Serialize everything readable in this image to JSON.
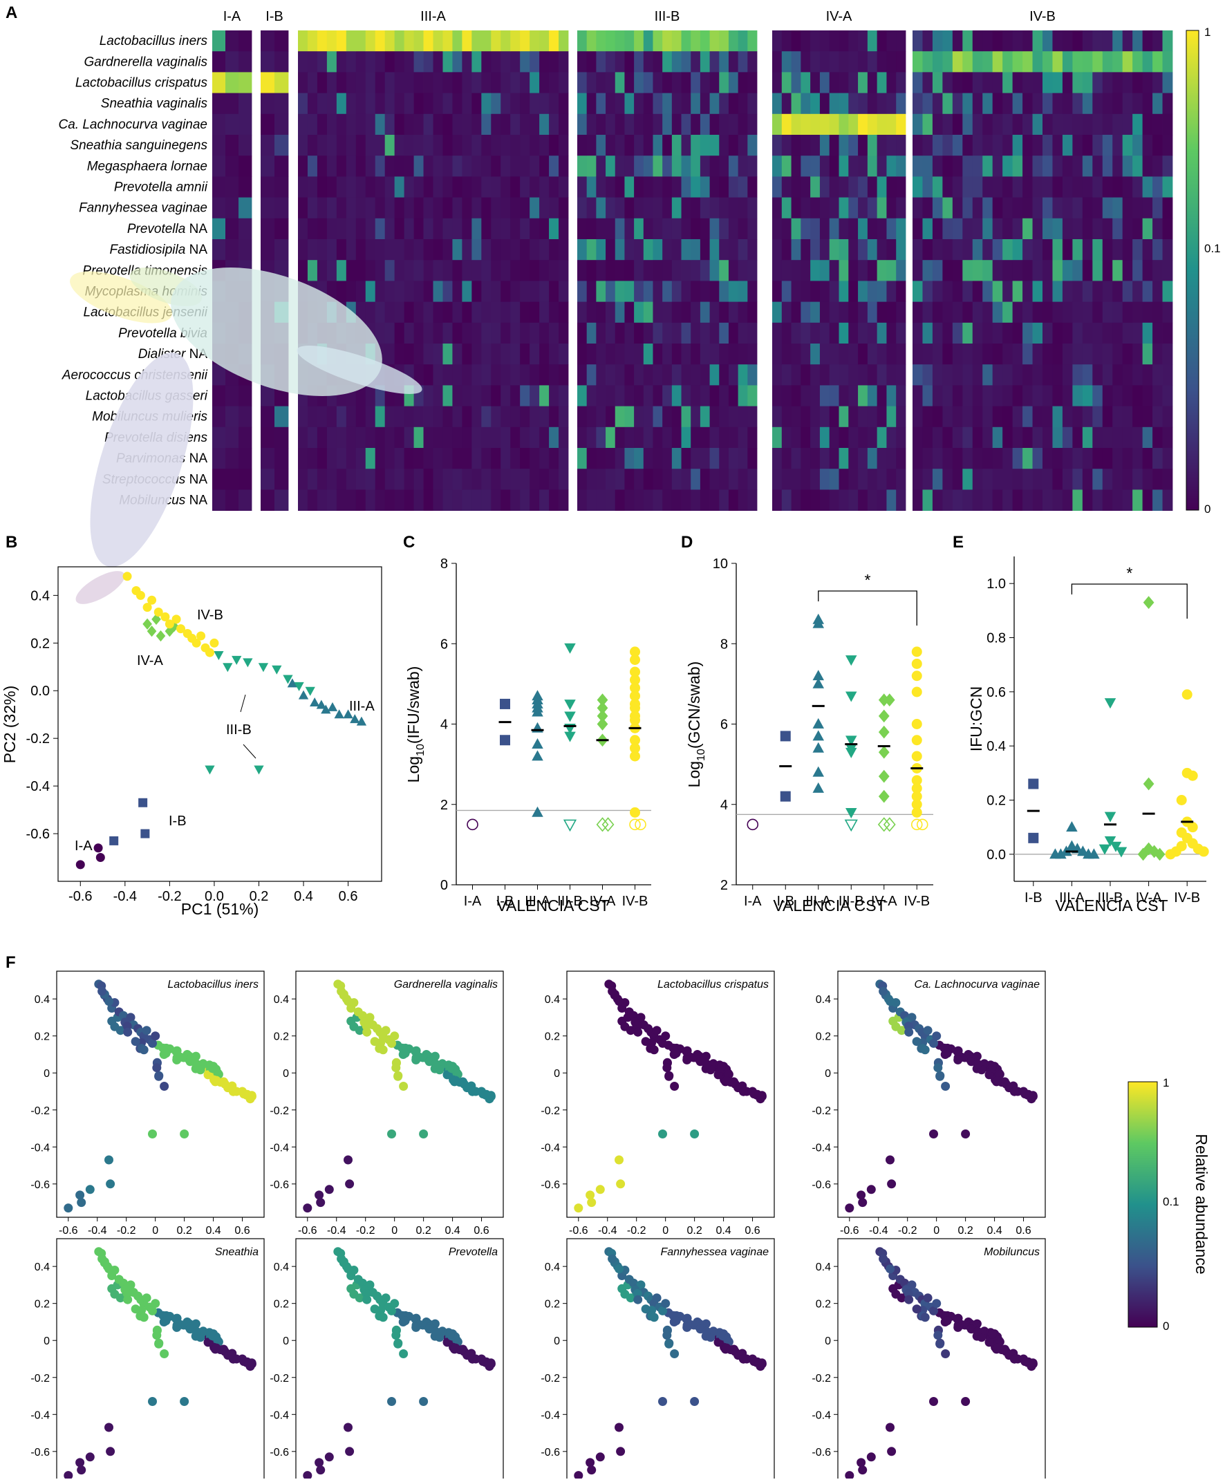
{
  "panel_letters": {
    "a": "A",
    "b": "B",
    "c": "C",
    "d": "D",
    "e": "E",
    "f": "F"
  },
  "colors": {
    "viridis": [
      "#440154",
      "#3b528b",
      "#21918c",
      "#5ec962",
      "#fde725"
    ],
    "cst": {
      "I-A": "#440154",
      "I-B": "#3b528b",
      "III-A": "#2a788e",
      "III-B": "#22a884",
      "IV-A": "#7ad151",
      "IV-B": "#fde725"
    },
    "hline": "#aaaaaa"
  },
  "chart_data": [
    {
      "id": "A",
      "type": "heatmap",
      "title": "",
      "groups": [
        {
          "label": "I-A",
          "columns": 3
        },
        {
          "label": "I-B",
          "columns": 2
        },
        {
          "label": "III-A",
          "columns": 28
        },
        {
          "label": "III-B",
          "columns": 19
        },
        {
          "label": "IV-A",
          "columns": 14
        },
        {
          "label": "IV-B",
          "columns": 26
        }
      ],
      "rows": [
        {
          "italic": "Lactobacillus iners",
          "suffix": ""
        },
        {
          "italic": "Gardnerella vaginalis",
          "suffix": ""
        },
        {
          "italic": "Lactobacillus crispatus",
          "suffix": ""
        },
        {
          "italic": "Sneathia vaginalis",
          "suffix": ""
        },
        {
          "italic": "Ca. Lachnocurva vaginae",
          "suffix": ""
        },
        {
          "italic": "Sneathia sanguinegens",
          "suffix": ""
        },
        {
          "italic": "Megasphaera lornae",
          "suffix": ""
        },
        {
          "italic": "Prevotella amnii",
          "suffix": ""
        },
        {
          "italic": "Fannyhessea vaginae",
          "suffix": ""
        },
        {
          "italic": "Prevotella",
          "suffix": " NA"
        },
        {
          "italic": "Fastidiosipila",
          "suffix": " NA"
        },
        {
          "italic": "Prevotella timonensis",
          "suffix": ""
        },
        {
          "italic": "Mycoplasma hominis",
          "suffix": ""
        },
        {
          "italic": "Lactobacillus jensenii",
          "suffix": ""
        },
        {
          "italic": "Prevotella bivia",
          "suffix": ""
        },
        {
          "italic": "Dialister",
          "suffix": " NA"
        },
        {
          "italic": "Aerococcus christensenii",
          "suffix": ""
        },
        {
          "italic": "Lactobacillus gasseri",
          "suffix": ""
        },
        {
          "italic": "Mobiluncus mulieris",
          "suffix": ""
        },
        {
          "italic": "Prevotella disiens",
          "suffix": ""
        },
        {
          "italic": "Parvimonas",
          "suffix": " NA"
        },
        {
          "italic": "Streptococcus",
          "suffix": " NA"
        },
        {
          "italic": "Mobiluncus",
          "suffix": " NA"
        }
      ],
      "dominant_rows": {
        "I-A": 2,
        "I-B": 2,
        "III-A": 0,
        "III-B": 0,
        "IV-A": 4,
        "IV-B": 1
      },
      "colorbar": {
        "ticks": [
          "1",
          "0.1",
          "0"
        ]
      }
    },
    {
      "id": "B",
      "type": "scatter",
      "xlabel": "PC1 (51%)",
      "ylabel": "PC2 (32%)",
      "xlim": [
        -0.7,
        0.75
      ],
      "ylim": [
        -0.8,
        0.52
      ],
      "xticks": [
        "-0.6",
        "-0.4",
        "-0.2",
        "0.0",
        "0.2",
        "0.4",
        "0.6"
      ],
      "yticks": [
        "0.4",
        "0.2",
        "0.0",
        "-0.2",
        "-0.4",
        "-0.6"
      ],
      "group_labels": [
        "I-A",
        "I-B",
        "III-A",
        "III-B",
        "IV-A",
        "IV-B"
      ],
      "series": [
        {
          "name": "I-A",
          "marker": "circle",
          "points": [
            [
              -0.6,
              -0.73
            ],
            [
              -0.52,
              -0.66
            ],
            [
              -0.51,
              -0.7
            ]
          ]
        },
        {
          "name": "I-B",
          "marker": "square",
          "points": [
            [
              -0.45,
              -0.63
            ],
            [
              -0.32,
              -0.47
            ],
            [
              -0.31,
              -0.6
            ]
          ]
        },
        {
          "name": "III-A",
          "marker": "triangle",
          "points": [
            [
              0.35,
              0.03
            ],
            [
              0.4,
              -0.02
            ],
            [
              0.45,
              -0.05
            ],
            [
              0.48,
              -0.06
            ],
            [
              0.5,
              -0.08
            ],
            [
              0.53,
              -0.07
            ],
            [
              0.56,
              -0.1
            ],
            [
              0.6,
              -0.1
            ],
            [
              0.63,
              -0.12
            ],
            [
              0.66,
              -0.13
            ]
          ]
        },
        {
          "name": "III-B",
          "marker": "triangle-down",
          "points": [
            [
              0.02,
              0.15
            ],
            [
              0.06,
              0.1
            ],
            [
              0.1,
              0.13
            ],
            [
              0.15,
              0.12
            ],
            [
              0.22,
              0.1
            ],
            [
              0.28,
              0.09
            ],
            [
              0.33,
              0.05
            ],
            [
              0.38,
              0.02
            ],
            [
              0.43,
              0.0
            ],
            [
              -0.02,
              -0.33
            ],
            [
              0.2,
              -0.33
            ]
          ]
        },
        {
          "name": "IV-A",
          "marker": "diamond",
          "points": [
            [
              -0.3,
              0.28
            ],
            [
              -0.28,
              0.25
            ],
            [
              -0.26,
              0.3
            ],
            [
              -0.24,
              0.23
            ],
            [
              -0.2,
              0.25
            ],
            [
              -0.18,
              0.27
            ]
          ]
        },
        {
          "name": "IV-B",
          "marker": "circle",
          "points": [
            [
              -0.39,
              0.48
            ],
            [
              -0.35,
              0.42
            ],
            [
              -0.33,
              0.4
            ],
            [
              -0.3,
              0.35
            ],
            [
              -0.28,
              0.38
            ],
            [
              -0.25,
              0.33
            ],
            [
              -0.22,
              0.31
            ],
            [
              -0.2,
              0.28
            ],
            [
              -0.17,
              0.3
            ],
            [
              -0.15,
              0.26
            ],
            [
              -0.12,
              0.24
            ],
            [
              -0.1,
              0.22
            ],
            [
              -0.08,
              0.2
            ],
            [
              -0.06,
              0.23
            ],
            [
              -0.04,
              0.18
            ],
            [
              -0.02,
              0.16
            ],
            [
              0.0,
              0.2
            ]
          ]
        }
      ]
    },
    {
      "id": "C",
      "type": "scatter",
      "xlabel": "VALENCIA CST",
      "ylabel_main": "Log",
      "ylabel_sub": "10",
      "ylabel_rest": "(IFU/swab)",
      "categories": [
        "I-A",
        "I-B",
        "III-A",
        "III-B",
        "IV-A",
        "IV-B"
      ],
      "ylim": [
        0,
        8
      ],
      "yticks": [
        "0",
        "2",
        "4",
        "6",
        "8"
      ],
      "lod": 1.85,
      "series": [
        {
          "name": "I-A",
          "marker": "circle",
          "open": [
            1.5
          ],
          "filled": [],
          "mean": null
        },
        {
          "name": "I-B",
          "marker": "square",
          "open": [],
          "filled": [
            4.5,
            3.6
          ],
          "mean": 4.05
        },
        {
          "name": "III-A",
          "marker": "triangle",
          "open": [],
          "filled": [
            4.7,
            4.6,
            4.5,
            4.4,
            4.3,
            3.9,
            3.5,
            3.2,
            1.8
          ],
          "mean": 3.85
        },
        {
          "name": "III-B",
          "marker": "triangle-down",
          "open": [
            1.5
          ],
          "filled": [
            5.9,
            4.5,
            4.2,
            3.9,
            3.7
          ],
          "mean": 3.95
        },
        {
          "name": "IV-A",
          "marker": "diamond",
          "open": [
            1.5,
            1.5
          ],
          "filled": [
            4.6,
            4.4,
            4.2,
            4.0,
            3.6
          ],
          "mean": 3.6
        },
        {
          "name": "IV-B",
          "marker": "circle",
          "open": [
            1.5,
            1.5
          ],
          "filled": [
            5.8,
            5.6,
            5.3,
            5.1,
            4.9,
            4.7,
            4.5,
            4.4,
            4.2,
            4.1,
            3.9,
            3.6,
            3.4,
            3.2,
            1.8
          ],
          "mean": 3.9
        }
      ]
    },
    {
      "id": "D",
      "type": "scatter",
      "xlabel": "VALENCIA CST",
      "ylabel_main": "Log",
      "ylabel_sub": "10",
      "ylabel_rest": "(GCN/swab)",
      "categories": [
        "I-A",
        "I-B",
        "III-A",
        "III-B",
        "IV-A",
        "IV-B"
      ],
      "ylim": [
        2,
        10
      ],
      "yticks": [
        "2",
        "4",
        "6",
        "8",
        "10"
      ],
      "lod": 3.75,
      "significance": {
        "from": "III-A",
        "to": "IV-B",
        "label": "*"
      },
      "series": [
        {
          "name": "I-A",
          "marker": "circle",
          "open": [
            3.5
          ],
          "filled": [],
          "mean": null
        },
        {
          "name": "I-B",
          "marker": "square",
          "open": [],
          "filled": [
            5.7,
            4.2
          ],
          "mean": 4.95
        },
        {
          "name": "III-A",
          "marker": "triangle",
          "open": [],
          "filled": [
            8.6,
            8.5,
            7.2,
            7.0,
            6.0,
            5.7,
            5.4,
            4.8,
            4.4
          ],
          "mean": 6.45
        },
        {
          "name": "III-B",
          "marker": "triangle-down",
          "open": [
            3.5
          ],
          "filled": [
            7.6,
            6.7,
            5.6,
            5.4,
            5.3,
            3.8
          ],
          "mean": 5.5
        },
        {
          "name": "IV-A",
          "marker": "diamond",
          "open": [
            3.5,
            3.5
          ],
          "filled": [
            6.6,
            6.6,
            6.2,
            5.8,
            5.3,
            4.7,
            4.2
          ],
          "mean": 5.45
        },
        {
          "name": "IV-B",
          "marker": "circle",
          "open": [
            3.5,
            3.5
          ],
          "filled": [
            7.8,
            7.5,
            7.2,
            6.8,
            6.0,
            5.6,
            5.2,
            4.9,
            4.6,
            4.4,
            4.2,
            4.0,
            3.8
          ],
          "mean": 4.9
        }
      ]
    },
    {
      "id": "E",
      "type": "scatter",
      "xlabel": "VALENCIA CST",
      "ylabel": "IFU:GCN",
      "categories": [
        "I-B",
        "III-A",
        "III-B",
        "IV-A",
        "IV-B"
      ],
      "ylim": [
        -0.1,
        1.1
      ],
      "yticks": [
        "0.0",
        "0.2",
        "0.4",
        "0.6",
        "0.8",
        "1.0"
      ],
      "zero_line": 0,
      "significance": {
        "from": "III-A",
        "to": "IV-B",
        "label": "*"
      },
      "series": [
        {
          "name": "I-B",
          "marker": "square",
          "filled": [
            0.26,
            0.06
          ],
          "mean": 0.16
        },
        {
          "name": "III-A",
          "marker": "triangle",
          "filled": [
            0.1,
            0.03,
            0.02,
            0.01,
            0.01,
            0.0,
            0.0,
            0.0,
            0.0
          ],
          "mean": 0.01
        },
        {
          "name": "III-B",
          "marker": "triangle-down",
          "filled": [
            0.56,
            0.14,
            0.05,
            0.03,
            0.02,
            0.01
          ],
          "mean": 0.11
        },
        {
          "name": "IV-A",
          "marker": "diamond",
          "filled": [
            0.93,
            0.26,
            0.02,
            0.01,
            0.0,
            0.0
          ],
          "mean": 0.15
        },
        {
          "name": "IV-B",
          "marker": "circle",
          "filled": [
            0.59,
            0.3,
            0.29,
            0.2,
            0.12,
            0.1,
            0.08,
            0.06,
            0.04,
            0.03,
            0.02,
            0.01,
            0.01,
            0.0
          ],
          "mean": 0.12
        }
      ]
    },
    {
      "id": "F",
      "type": "scatter",
      "xticks": [
        "-0.6",
        "-0.4",
        "-0.2",
        "0",
        "0.2",
        "0.4",
        "0.6"
      ],
      "yticks": [
        "0.4",
        "0.2",
        "0",
        "-0.2",
        "-0.4",
        "-0.6"
      ],
      "xlim": [
        -0.68,
        0.75
      ],
      "ylim": [
        -0.78,
        0.55
      ],
      "panels": [
        {
          "title": "Lactobacillus iners",
          "driver": "iners"
        },
        {
          "title": "Gardnerella vaginalis",
          "driver": "gard"
        },
        {
          "title": "Lactobacillus crispatus",
          "driver": "crisp"
        },
        {
          "title": "Ca. Lachnocurva vaginae",
          "driver": "lach"
        },
        {
          "title": "Sneathia",
          "driver": "sneath"
        },
        {
          "title": "Prevotella",
          "driver": "prev"
        },
        {
          "title": "Fannyhessea vaginae",
          "driver": "fanny"
        },
        {
          "title": "Mobiluncus",
          "driver": "mobi"
        }
      ],
      "colorbar": {
        "ticks": [
          "1",
          "0.1",
          "0"
        ],
        "label": "Relative abundance"
      }
    }
  ]
}
